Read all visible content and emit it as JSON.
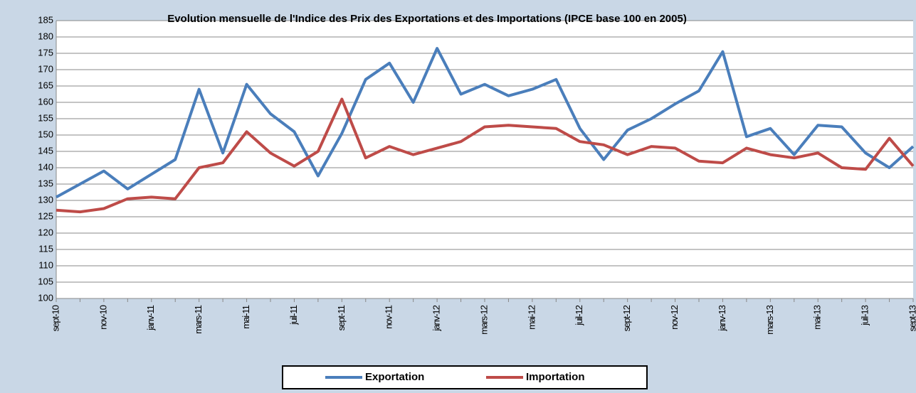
{
  "chart_data": {
    "type": "line",
    "title": "Evolution mensuelle de l'Indice des Prix des Exportations et des Importations (IPCE base 100 en 2005)",
    "categories": [
      "sept-10",
      null,
      "nov-10",
      null,
      "janv-11",
      null,
      "mars-11",
      null,
      "mai-11",
      null,
      "juil-11",
      null,
      "sept-11",
      null,
      "nov-11",
      null,
      "janv-12",
      null,
      "mars-12",
      null,
      "mai-12",
      null,
      "juil-12",
      null,
      "sept-12",
      null,
      "nov-12",
      null,
      "janv-13",
      null,
      "mars-13",
      null,
      "mai-13",
      null,
      "juil-13",
      null,
      "sept-13"
    ],
    "series": [
      {
        "name": "Exportation",
        "color": "#4a7ebb",
        "values": [
          131,
          135,
          139,
          133.5,
          138,
          142.5,
          164,
          144.5,
          165.5,
          156.5,
          151,
          137.5,
          150.5,
          167,
          172,
          160,
          176.5,
          162.5,
          165.5,
          162,
          164,
          167,
          152,
          142.5,
          151.5,
          155,
          159.5,
          163.5,
          175.5,
          149.5,
          152,
          144,
          153,
          152.5,
          144.5,
          140,
          146.5
        ]
      },
      {
        "name": "Importation",
        "color": "#be4b48",
        "values": [
          127,
          126.5,
          127.5,
          130.5,
          131,
          130.5,
          140,
          141.5,
          151,
          144.5,
          140.5,
          145,
          161,
          143,
          146.5,
          144,
          146,
          148,
          152.5,
          153,
          152.5,
          152,
          148,
          147,
          144,
          146.5,
          146,
          142,
          141.5,
          146,
          144,
          143,
          144.5,
          140,
          139.5,
          149,
          140.5
        ]
      }
    ],
    "ylim": [
      100,
      185
    ],
    "yticks": [
      100,
      105,
      110,
      115,
      120,
      125,
      130,
      135,
      140,
      145,
      150,
      155,
      160,
      165,
      170,
      175,
      180,
      185
    ],
    "grid": true,
    "legend": "bottom"
  }
}
